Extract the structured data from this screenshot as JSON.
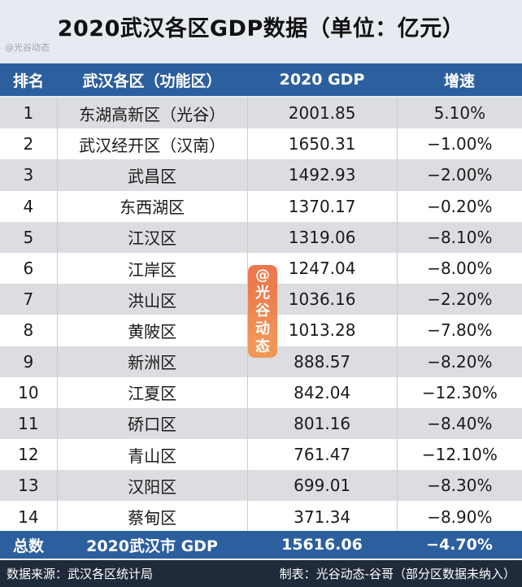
{
  "title": "2020武汉各区GDP数据（单位：亿元）",
  "watermark_small": "@光谷动态",
  "header": {
    "rank": "排名",
    "district": "武汉各区（功能区）",
    "gdp": "2020 GDP",
    "growth": "增速"
  },
  "rows": [
    {
      "rank": "1",
      "district": "东湖高新区（光谷）",
      "gdp": "2001.85",
      "growth": "5.10%"
    },
    {
      "rank": "2",
      "district": "武汉经开区（汉南）",
      "gdp": "1650.31",
      "growth": "−1.00%"
    },
    {
      "rank": "3",
      "district": "武昌区",
      "gdp": "1492.93",
      "growth": "−2.00%"
    },
    {
      "rank": "4",
      "district": "东西湖区",
      "gdp": "1370.17",
      "growth": "−0.20%"
    },
    {
      "rank": "5",
      "district": "江汉区",
      "gdp": "1319.06",
      "growth": "−8.10%"
    },
    {
      "rank": "6",
      "district": "江岸区",
      "gdp": "1247.04",
      "growth": "−8.00%"
    },
    {
      "rank": "7",
      "district": "洪山区",
      "gdp": "1036.16",
      "growth": "−2.20%"
    },
    {
      "rank": "8",
      "district": "黄陂区",
      "gdp": "1013.28",
      "growth": "−7.80%"
    },
    {
      "rank": "9",
      "district": "新洲区",
      "gdp": "888.57",
      "growth": "−8.20%"
    },
    {
      "rank": "10",
      "district": "江夏区",
      "gdp": "842.04",
      "growth": "−12.30%"
    },
    {
      "rank": "11",
      "district": "硚口区",
      "gdp": "801.16",
      "growth": "−8.40%"
    },
    {
      "rank": "12",
      "district": "青山区",
      "gdp": "761.47",
      "growth": "−12.10%"
    },
    {
      "rank": "13",
      "district": "汉阳区",
      "gdp": "699.01",
      "growth": "−8.30%"
    },
    {
      "rank": "14",
      "district": "蔡甸区",
      "gdp": "371.34",
      "growth": "−8.90%"
    }
  ],
  "total": {
    "label": "总数",
    "name": "2020武汉市 GDP",
    "gdp": "15616.06",
    "growth": "−4.70%"
  },
  "source": {
    "left": "数据来源：武汉各区统计局",
    "right": "制表：光谷动态-谷哥（部分区数据未纳入）"
  },
  "badge": {
    "at": "@",
    "chars": [
      "光",
      "谷",
      "动",
      "态"
    ]
  },
  "colors": {
    "header_bg": "#2c5f9e",
    "row_alt": "#dcdde0",
    "badge": "#ef7a43",
    "source_bg": "#1f2a3a"
  }
}
